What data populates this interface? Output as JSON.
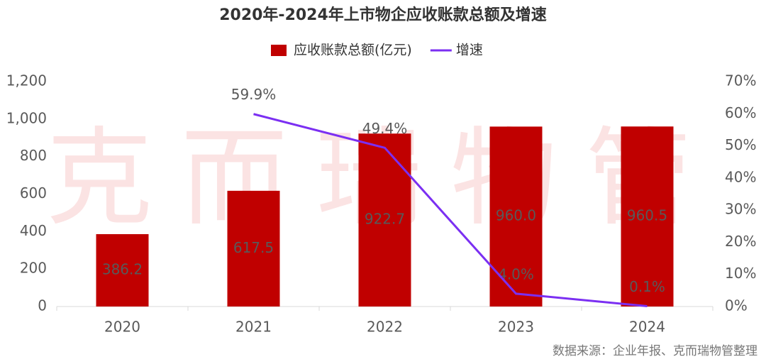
{
  "chart_data": {
    "type": "bar",
    "title": "2020年-2024年上市物企应收账款总额及增速",
    "watermark": "克而瑞物管",
    "source": "数据来源：企业年报、克而瑞物管整理",
    "categories": [
      "2020",
      "2021",
      "2022",
      "2023",
      "2024"
    ],
    "series": [
      {
        "name": "应收账款总额(亿元)",
        "type": "bar",
        "color": "#c00000",
        "values": [
          386.2,
          617.5,
          922.7,
          960.0,
          960.5
        ],
        "value_labels": [
          "386.2",
          "617.5",
          "922.7",
          "960.0",
          "960.5"
        ]
      },
      {
        "name": "增速",
        "type": "line",
        "color": "#7b2ff2",
        "axis": "y2",
        "values": [
          null,
          59.9,
          49.4,
          4.0,
          0.1
        ],
        "value_labels": [
          null,
          "59.9%",
          "49.4%",
          "4.0%",
          "0.1%"
        ]
      }
    ],
    "ylim": [
      0,
      1200
    ],
    "yticks": [
      0,
      200,
      400,
      600,
      800,
      {
        "value": 1000,
        "label": "1,000"
      },
      {
        "value": 1200,
        "label": "1,200"
      }
    ],
    "y2lim": [
      0,
      70
    ],
    "y2ticks": [
      {
        "value": 0,
        "label": "0%"
      },
      {
        "value": 10,
        "label": "10%"
      },
      {
        "value": 20,
        "label": "20%"
      },
      {
        "value": 30,
        "label": "30%"
      },
      {
        "value": 40,
        "label": "40%"
      },
      {
        "value": 50,
        "label": "50%"
      },
      {
        "value": 60,
        "label": "60%"
      },
      {
        "value": 70,
        "label": "70%"
      }
    ]
  }
}
